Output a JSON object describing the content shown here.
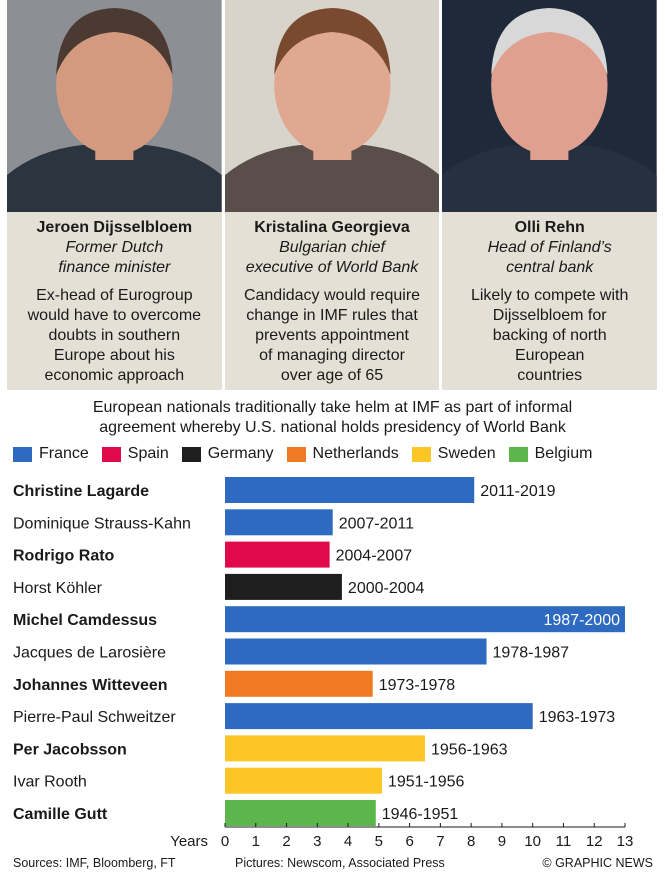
{
  "profiles": [
    {
      "name": "Jeroen Dijsselbloem",
      "role_line1": "Former Dutch",
      "role_line2": "finance minister",
      "desc": [
        "Ex-head of Eurogroup",
        "would have to overcome",
        "doubts in southern",
        "Europe about his",
        "economic approach"
      ],
      "photo_colors": {
        "bg": "#8c8f93",
        "skin": "#d49a80",
        "suit": "#2c3440",
        "hair": "#4a3a32"
      }
    },
    {
      "name": "Kristalina Georgieva",
      "role_line1": "Bulgarian chief",
      "role_line2": "executive of World Bank",
      "desc": [
        "Candidacy would require",
        "change in IMF rules that",
        "prevents appointment",
        "of managing director",
        "over age of 65"
      ],
      "photo_colors": {
        "bg": "#d8d4cc",
        "skin": "#e0a891",
        "suit": "#5a4e4a",
        "hair": "#7a4a30"
      }
    },
    {
      "name": "Olli Rehn",
      "role_line1": "Head of Finland’s",
      "role_line2": "central bank",
      "desc": [
        "Likely to compete with",
        "Dijsselbloem for",
        "backing of north",
        "European",
        "countries"
      ],
      "photo_colors": {
        "bg": "#1e2a3a",
        "skin": "#e0a090",
        "suit": "#263040",
        "hair": "#d8d8d8"
      }
    }
  ],
  "intro": [
    "European nationals traditionally take helm at IMF as part of informal",
    "agreement whereby U.S. national holds presidency of World Bank"
  ],
  "legend": [
    {
      "name": "France",
      "color": "#2e6bc0"
    },
    {
      "name": "Spain",
      "color": "#e00a4a"
    },
    {
      "name": "Germany",
      "color": "#1e1e1e"
    },
    {
      "name": "Netherlands",
      "color": "#f07a24"
    },
    {
      "name": "Sweden",
      "color": "#fcc626"
    },
    {
      "name": "Belgium",
      "color": "#5cb64c"
    }
  ],
  "chart_data": {
    "type": "bar",
    "orientation": "horizontal",
    "categories": [
      "Christine Lagarde",
      "Dominique Strauss-Kahn",
      "Rodrigo Rato",
      "Horst Köhler",
      "Michel Camdessus",
      "Jacques de Larosière",
      "Johannes Witteveen",
      "Pierre-Paul Schweitzer",
      "Per Jacobsson",
      "Ivar Rooth",
      "Camille Gutt"
    ],
    "bold": [
      true,
      false,
      true,
      false,
      true,
      false,
      true,
      false,
      true,
      false,
      true
    ],
    "values": [
      8.1,
      3.5,
      3.4,
      3.8,
      13,
      8.5,
      4.8,
      10,
      6.5,
      5.1,
      4.9
    ],
    "countries": [
      "France",
      "France",
      "Spain",
      "Germany",
      "France",
      "France",
      "Netherlands",
      "France",
      "Sweden",
      "Sweden",
      "Belgium"
    ],
    "data_labels": [
      "2011-2019",
      "2007-2011",
      "2004-2007",
      "2000-2004",
      "1987-2000",
      "1978-1987",
      "1973-1978",
      "1963-1973",
      "1956-1963",
      "1951-1956",
      "1946-1951"
    ],
    "xlabel": "Years",
    "xlim": [
      0,
      13
    ],
    "xticks": [
      0,
      1,
      2,
      3,
      4,
      5,
      6,
      7,
      8,
      9,
      10,
      11,
      12,
      13
    ],
    "grid": false
  },
  "footer": {
    "sources": "Sources: IMF, Bloomberg, FT",
    "pictures": "Pictures: Newscom, Associated Press",
    "credit": "© GRAPHIC NEWS"
  }
}
